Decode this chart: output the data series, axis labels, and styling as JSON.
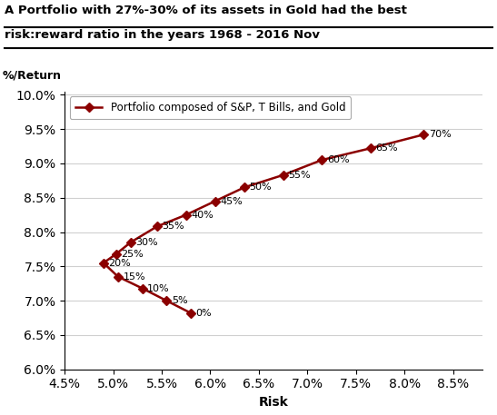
{
  "title_line1": "A Portfolio with 27%-30% of its assets in Gold had the best",
  "title_line2": "risk:reward ratio in the years 1968 - 2016 Nov",
  "ylabel": "%/Return",
  "xlabel": "Risk",
  "legend_label": "Portfolio composed of S&P, T Bills, and Gold",
  "line_color": "#8B0000",
  "marker": "D",
  "points": [
    {
      "label": "0%",
      "risk": 0.058,
      "ret": 0.0682
    },
    {
      "label": "5%",
      "risk": 0.0555,
      "ret": 0.07
    },
    {
      "label": "10%",
      "risk": 0.053,
      "ret": 0.0718
    },
    {
      "label": "15%",
      "risk": 0.0505,
      "ret": 0.0735
    },
    {
      "label": "20%",
      "risk": 0.049,
      "ret": 0.0755
    },
    {
      "label": "25%",
      "risk": 0.0503,
      "ret": 0.0768
    },
    {
      "label": "30%",
      "risk": 0.0518,
      "ret": 0.0785
    },
    {
      "label": "35%",
      "risk": 0.0545,
      "ret": 0.0808
    },
    {
      "label": "40%",
      "risk": 0.0575,
      "ret": 0.0825
    },
    {
      "label": "45%",
      "risk": 0.0605,
      "ret": 0.0845
    },
    {
      "label": "50%",
      "risk": 0.0635,
      "ret": 0.0865
    },
    {
      "label": "55%",
      "risk": 0.0675,
      "ret": 0.0883
    },
    {
      "label": "60%",
      "risk": 0.0715,
      "ret": 0.0905
    },
    {
      "label": "65%",
      "risk": 0.0765,
      "ret": 0.0922
    },
    {
      "label": "70%",
      "risk": 0.082,
      "ret": 0.0942
    }
  ],
  "xlim": [
    0.045,
    0.088
  ],
  "ylim": [
    0.06,
    0.1005
  ],
  "xticks": [
    0.045,
    0.05,
    0.055,
    0.06,
    0.065,
    0.07,
    0.075,
    0.08,
    0.085
  ],
  "yticks": [
    0.06,
    0.065,
    0.07,
    0.075,
    0.08,
    0.085,
    0.09,
    0.095,
    0.1
  ],
  "figsize": [
    5.47,
    4.57
  ],
  "dpi": 100,
  "bg_color": "#ffffff"
}
